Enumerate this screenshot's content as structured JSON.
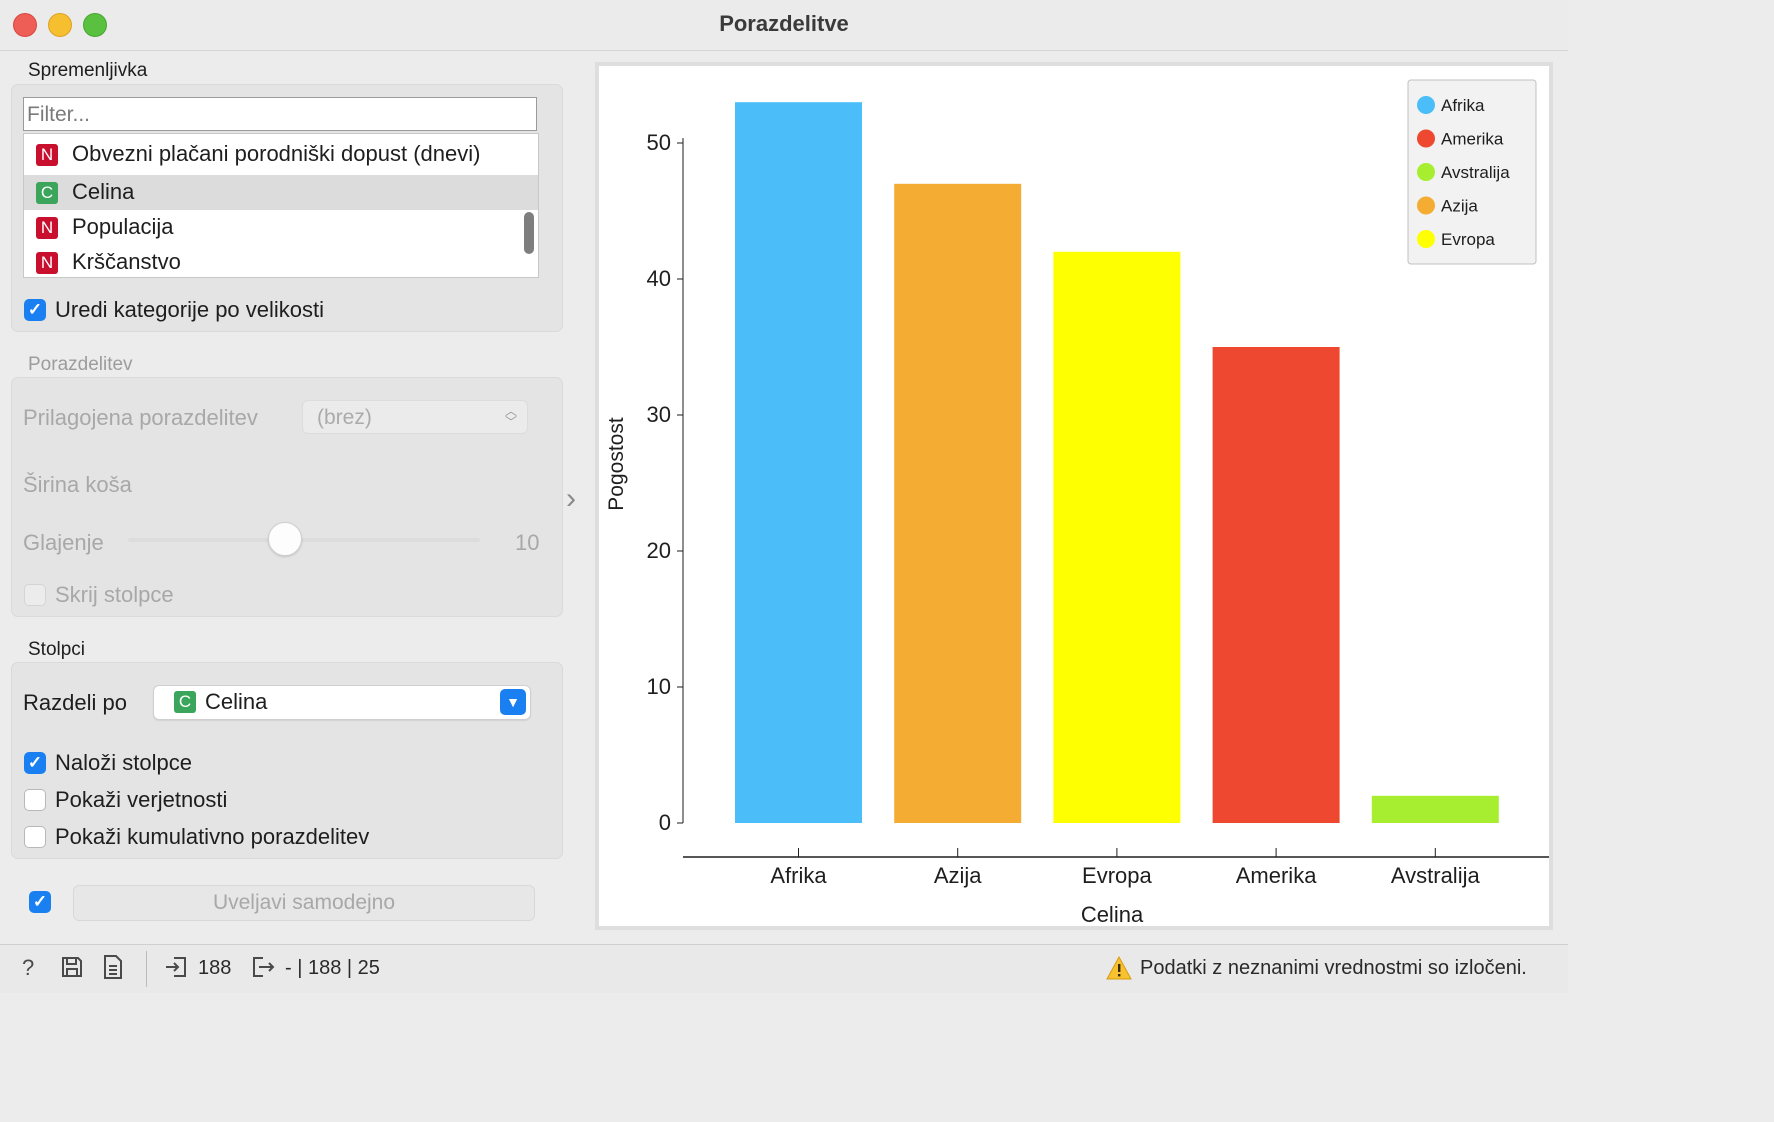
{
  "window": {
    "title": "Porazdelitve"
  },
  "variable_section": {
    "title": "Spremenljivka",
    "filter_placeholder": "Filter...",
    "items": [
      {
        "type": "N",
        "label": "Obvezni plačani porodniški dopust (dnevi)",
        "selected": false
      },
      {
        "type": "C",
        "label": "Celina",
        "selected": true
      },
      {
        "type": "N",
        "label": "Populacija",
        "selected": false
      },
      {
        "type": "N",
        "label": "Krščanstvo",
        "selected": false
      }
    ],
    "sort_checkbox": {
      "label": "Uredi kategorije po velikosti",
      "checked": true
    }
  },
  "distribution_section": {
    "title": "Porazdelitev",
    "custom_label": "Prilagojena porazdelitev",
    "custom_value": "(brez)",
    "bin_width_label": "Širina koša",
    "smoothing_label": "Glajenje",
    "smoothing_value": "10",
    "smoothing_level": 0.5,
    "hide_bars_label": "Skrij stolpce"
  },
  "columns_section": {
    "title": "Stolpci",
    "split_label": "Razdeli po",
    "split_type": "C",
    "split_value": "Celina",
    "stack_checkbox": {
      "label": "Naloži stolpce",
      "checked": true
    },
    "prob_checkbox": {
      "label": "Pokaži verjetnosti",
      "checked": false
    },
    "cum_checkbox": {
      "label": "Pokaži kumulativno porazdelitev",
      "checked": false
    }
  },
  "apply": {
    "label": "Uveljavi samodejno",
    "auto_checked": true
  },
  "status": {
    "input_count": "188",
    "output_text": "- | 188 | 25",
    "warning": "Podatki z neznanimi vrednostmi so izločeni."
  },
  "colors": {
    "accent": "#1a7ff0",
    "Afrika": "#4bbdf9",
    "Amerika": "#ef4830",
    "Avstralija": "#a6ee2f",
    "Azija": "#f4ad32",
    "Evropa": "#feff00"
  },
  "chart_data": {
    "type": "bar",
    "xlabel": "Celina",
    "ylabel": "Pogostost",
    "categories": [
      "Afrika",
      "Azija",
      "Evropa",
      "Amerika",
      "Avstralija"
    ],
    "values": [
      53,
      47,
      42,
      35,
      2
    ],
    "yticks": [
      0,
      10,
      20,
      30,
      40,
      50
    ],
    "ylim": [
      0,
      55
    ],
    "legend": [
      "Afrika",
      "Amerika",
      "Avstralija",
      "Azija",
      "Evropa"
    ],
    "legend_position": "top-right",
    "grid": false
  }
}
